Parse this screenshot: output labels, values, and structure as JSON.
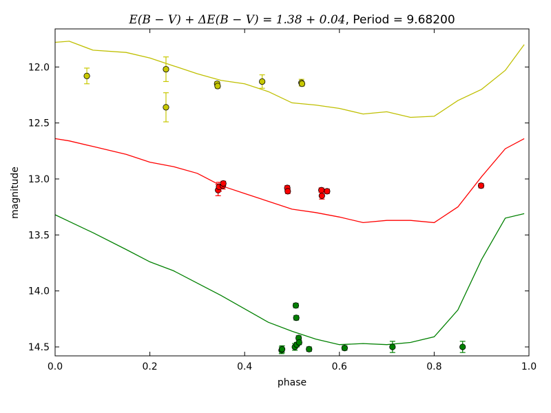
{
  "chart_data": {
    "type": "scatter",
    "title_math": "E(B − V) + ΔE(B − V) = 1.38 + 0.04",
    "title_rest": ", Period = 9.68200",
    "xlabel": "phase",
    "ylabel": "magnitude",
    "xlim": [
      0.0,
      1.0
    ],
    "ylim": [
      14.58,
      11.66
    ],
    "y_inverted": true,
    "grid": false,
    "x_ticks": [
      0.0,
      0.2,
      0.4,
      0.6,
      0.8,
      1.0
    ],
    "x_tick_labels": [
      "0.0",
      "0.2",
      "0.4",
      "0.6",
      "0.8",
      "1.0"
    ],
    "y_ticks": [
      12.0,
      12.5,
      13.0,
      13.5,
      14.0,
      14.5
    ],
    "y_tick_labels": [
      "12.0",
      "12.5",
      "13.0",
      "13.5",
      "14.0",
      "14.5"
    ],
    "series": [
      {
        "color": "#bfbf00",
        "marker_color": "#c8c800",
        "curve": [
          [
            0.0,
            11.78
          ],
          [
            0.03,
            11.77
          ],
          [
            0.08,
            11.85
          ],
          [
            0.15,
            11.87
          ],
          [
            0.2,
            11.92
          ],
          [
            0.25,
            11.99
          ],
          [
            0.3,
            12.06
          ],
          [
            0.35,
            12.12
          ],
          [
            0.4,
            12.15
          ],
          [
            0.45,
            12.22
          ],
          [
            0.5,
            12.32
          ],
          [
            0.55,
            12.34
          ],
          [
            0.6,
            12.37
          ],
          [
            0.65,
            12.42
          ],
          [
            0.7,
            12.4
          ],
          [
            0.75,
            12.45
          ],
          [
            0.8,
            12.44
          ],
          [
            0.85,
            12.3
          ],
          [
            0.9,
            12.2
          ],
          [
            0.95,
            12.03
          ],
          [
            0.99,
            11.8
          ]
        ],
        "points": [
          [
            0.067,
            12.08,
            0.07
          ],
          [
            0.234,
            12.02,
            0.11
          ],
          [
            0.234,
            12.36,
            0.13
          ],
          [
            0.342,
            12.15,
            0.02
          ],
          [
            0.343,
            12.17,
            0.02
          ],
          [
            0.437,
            12.13,
            0.06
          ],
          [
            0.52,
            12.14,
            0.03
          ],
          [
            0.521,
            12.15,
            0.02
          ]
        ]
      },
      {
        "color": "#ff0000",
        "marker_color": "#ff0000",
        "curve": [
          [
            0.0,
            12.64
          ],
          [
            0.03,
            12.66
          ],
          [
            0.08,
            12.71
          ],
          [
            0.15,
            12.78
          ],
          [
            0.2,
            12.85
          ],
          [
            0.25,
            12.89
          ],
          [
            0.3,
            12.95
          ],
          [
            0.35,
            13.06
          ],
          [
            0.4,
            13.13
          ],
          [
            0.45,
            13.2
          ],
          [
            0.5,
            13.27
          ],
          [
            0.55,
            13.3
          ],
          [
            0.6,
            13.34
          ],
          [
            0.65,
            13.39
          ],
          [
            0.7,
            13.37
          ],
          [
            0.75,
            13.37
          ],
          [
            0.8,
            13.39
          ],
          [
            0.85,
            13.25
          ],
          [
            0.9,
            12.98
          ],
          [
            0.95,
            12.73
          ],
          [
            0.99,
            12.64
          ]
        ],
        "points": [
          [
            0.344,
            13.1,
            0.05
          ],
          [
            0.346,
            13.07,
            0.04
          ],
          [
            0.354,
            13.06,
            0.03
          ],
          [
            0.355,
            13.04,
            0.02
          ],
          [
            0.49,
            13.08,
            0.02
          ],
          [
            0.491,
            13.11,
            0.02
          ],
          [
            0.562,
            13.1,
            0.02
          ],
          [
            0.563,
            13.15,
            0.03
          ],
          [
            0.574,
            13.11,
            0.02
          ],
          [
            0.899,
            13.06,
            0.02
          ]
        ]
      },
      {
        "color": "#008000",
        "marker_color": "#008000",
        "curve": [
          [
            0.0,
            13.32
          ],
          [
            0.03,
            13.38
          ],
          [
            0.08,
            13.48
          ],
          [
            0.15,
            13.63
          ],
          [
            0.2,
            13.74
          ],
          [
            0.25,
            13.82
          ],
          [
            0.3,
            13.93
          ],
          [
            0.35,
            14.04
          ],
          [
            0.4,
            14.16
          ],
          [
            0.45,
            14.28
          ],
          [
            0.5,
            14.36
          ],
          [
            0.55,
            14.43
          ],
          [
            0.6,
            14.48
          ],
          [
            0.65,
            14.47
          ],
          [
            0.7,
            14.48
          ],
          [
            0.75,
            14.46
          ],
          [
            0.8,
            14.41
          ],
          [
            0.85,
            14.17
          ],
          [
            0.9,
            13.72
          ],
          [
            0.95,
            13.35
          ],
          [
            0.99,
            13.31
          ]
        ],
        "points": [
          [
            0.478,
            14.53,
            0.03
          ],
          [
            0.479,
            14.52,
            0.03
          ],
          [
            0.506,
            14.5,
            0.03
          ],
          [
            0.508,
            14.13,
            0.02
          ],
          [
            0.509,
            14.24,
            0.02
          ],
          [
            0.51,
            14.48,
            0.02
          ],
          [
            0.514,
            14.42,
            0.02
          ],
          [
            0.515,
            14.46,
            0.02
          ],
          [
            0.536,
            14.52,
            0.02
          ],
          [
            0.611,
            14.51,
            0.02
          ],
          [
            0.712,
            14.5,
            0.05
          ],
          [
            0.86,
            14.5,
            0.05
          ]
        ]
      }
    ]
  }
}
